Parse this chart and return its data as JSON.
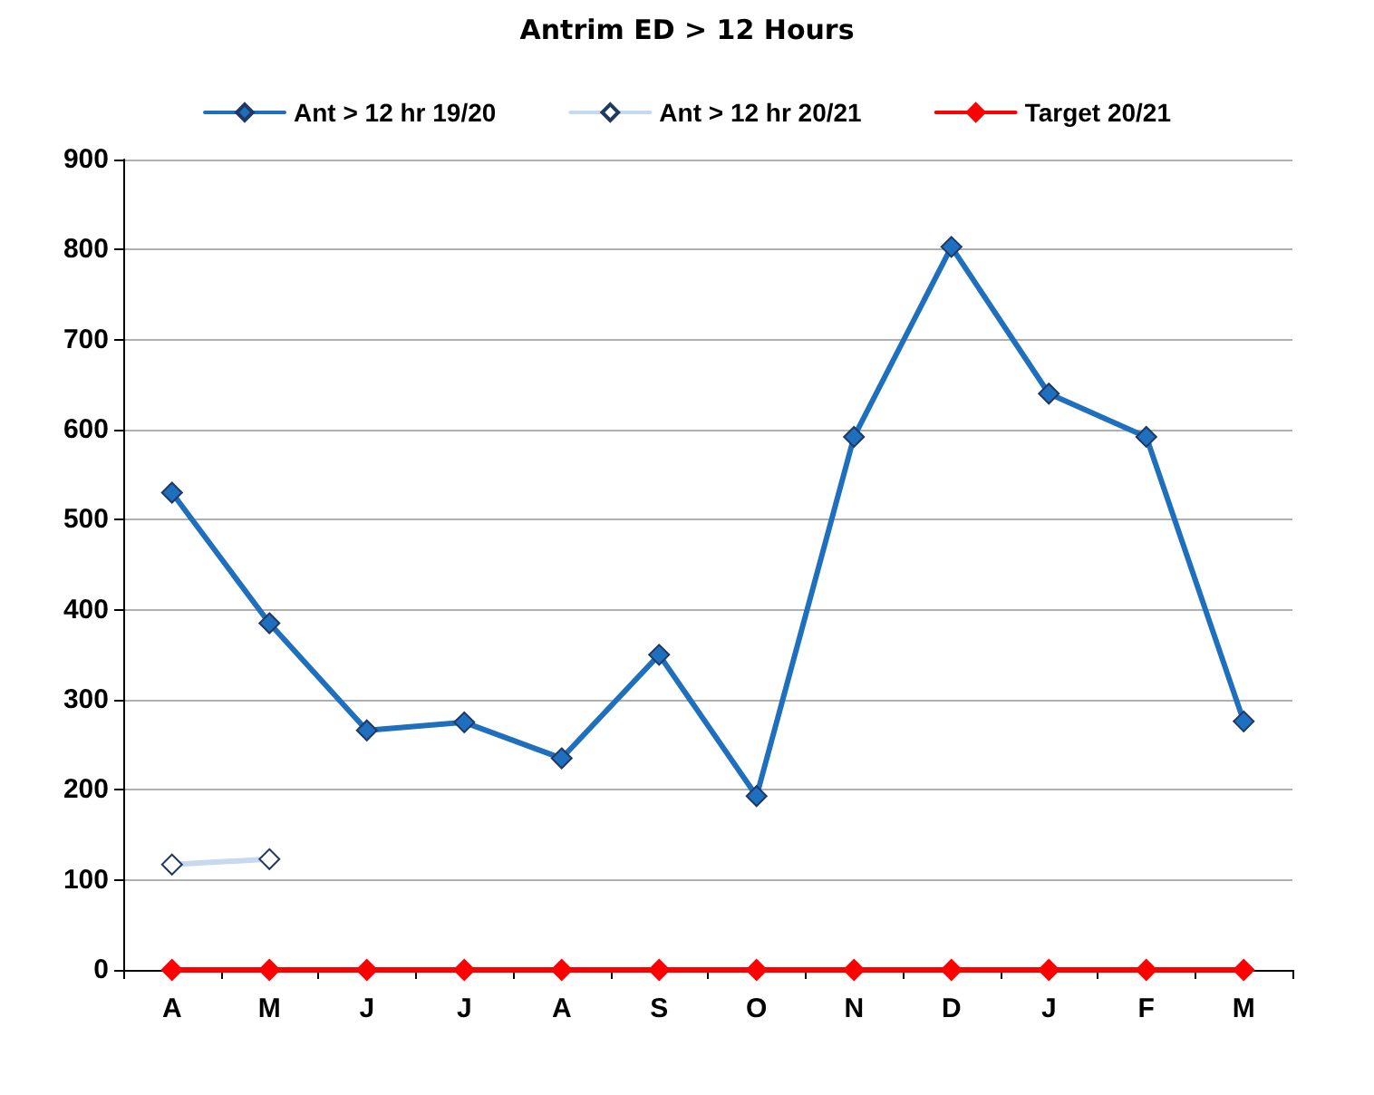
{
  "chart_data": {
    "type": "line",
    "title": "Antrim ED > 12 Hours",
    "categories": [
      "A",
      "M",
      "J",
      "J",
      "A",
      "S",
      "O",
      "N",
      "D",
      "J",
      "F",
      "M"
    ],
    "series": [
      {
        "name": "Ant > 12 hr 19/20",
        "color": "#1f6fbf",
        "values": [
          530,
          385,
          266,
          275,
          235,
          350,
          193,
          592,
          803,
          640,
          592,
          276
        ]
      },
      {
        "name": "Ant > 12 hr 20/21",
        "color": "#c6d9f1",
        "values": [
          117,
          123,
          null,
          null,
          null,
          null,
          null,
          null,
          null,
          null,
          null,
          null
        ]
      },
      {
        "name": "Target 20/21",
        "color": "#ff0000",
        "values": [
          0,
          0,
          0,
          0,
          0,
          0,
          0,
          0,
          0,
          0,
          0,
          0
        ]
      }
    ],
    "ylim": [
      0,
      900
    ],
    "yticks": [
      0,
      100,
      200,
      300,
      400,
      500,
      600,
      700,
      800,
      900
    ],
    "grid": "y",
    "legend": "top",
    "marker": "diamond",
    "line_style": "solid"
  }
}
